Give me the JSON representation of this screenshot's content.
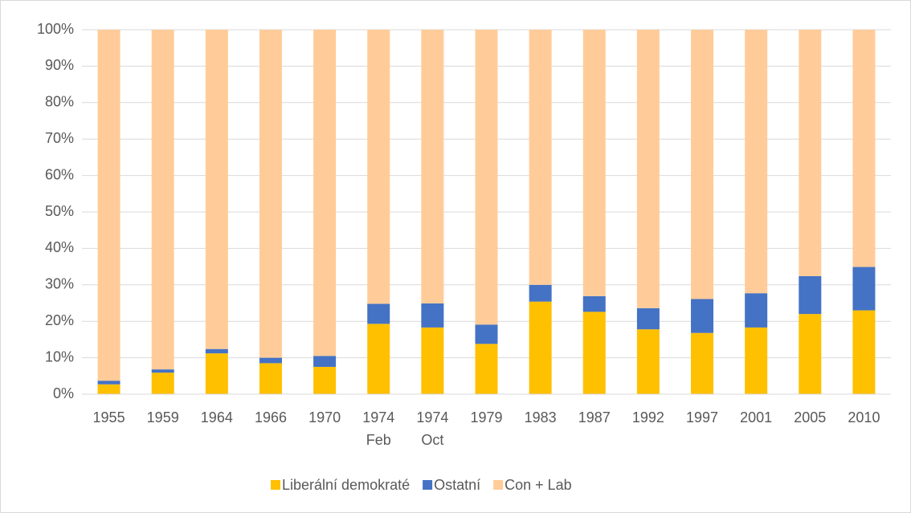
{
  "chart_data": {
    "type": "stacked_bar",
    "categories": [
      "1955",
      "1959",
      "1964",
      "1966",
      "1970",
      "1974 Feb",
      "1974 Oct",
      "1979",
      "1983",
      "1987",
      "1992",
      "1997",
      "2001",
      "2005",
      "2010"
    ],
    "series": [
      {
        "name": "Liberální demokraté",
        "color": "#ffc000",
        "values": [
          2.7,
          5.9,
          11.2,
          8.5,
          7.5,
          19.3,
          18.3,
          13.8,
          25.4,
          22.6,
          17.8,
          16.8,
          18.3,
          22.0,
          23.0
        ]
      },
      {
        "name": "Ostatní",
        "color": "#4472c4",
        "values": [
          1.0,
          0.9,
          1.2,
          1.5,
          3.0,
          5.5,
          6.6,
          5.3,
          4.6,
          4.3,
          5.8,
          9.3,
          9.4,
          10.4,
          11.9
        ]
      },
      {
        "name": "Con + Lab",
        "color": "#ffcc99",
        "values": [
          96.3,
          93.2,
          87.6,
          90.0,
          89.5,
          75.2,
          75.1,
          80.9,
          70.0,
          73.1,
          76.4,
          73.9,
          72.3,
          67.6,
          65.1
        ]
      }
    ],
    "ylim": [
      0,
      100
    ],
    "yticks": [
      {
        "value": 0,
        "label": "0%"
      },
      {
        "value": 10,
        "label": "10%"
      },
      {
        "value": 20,
        "label": "20%"
      },
      {
        "value": 30,
        "label": "30%"
      },
      {
        "value": 40,
        "label": "40%"
      },
      {
        "value": 50,
        "label": "50%"
      },
      {
        "value": 60,
        "label": "60%"
      },
      {
        "value": 70,
        "label": "70%"
      },
      {
        "value": 80,
        "label": "80%"
      },
      {
        "value": 90,
        "label": "90%"
      },
      {
        "value": 100,
        "label": "100%"
      }
    ],
    "grid": true,
    "legend": "bottom"
  }
}
